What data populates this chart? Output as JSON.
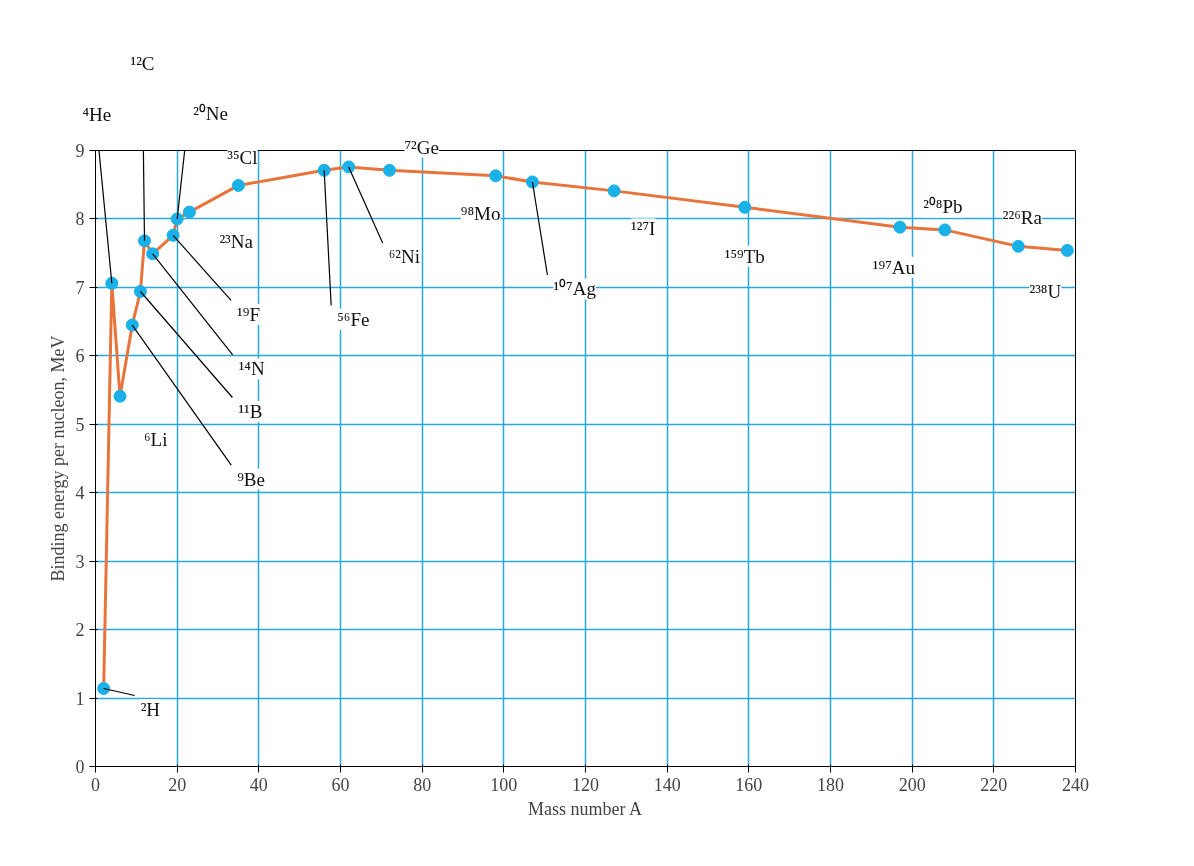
{
  "chart_data": {
    "type": "line",
    "xlabel": "Mass number A",
    "ylabel": "Binding energy per nucleon, MeV",
    "x": [
      2,
      4,
      6,
      9,
      11,
      12,
      14,
      19,
      20,
      23,
      35,
      56,
      62,
      72,
      98,
      107,
      127,
      159,
      197,
      208,
      226,
      238
    ],
    "series": [
      {
        "color": "#e8743b",
        "values": [
          1.14,
          7.06,
          5.41,
          6.45,
          6.94,
          7.68,
          7.49,
          7.76,
          8.0,
          8.1,
          8.49,
          8.71,
          8.76,
          8.71,
          8.63,
          8.54,
          8.41,
          8.17,
          7.88,
          7.84,
          7.6,
          7.54
        ]
      }
    ],
    "marker": "circle",
    "grid": true,
    "xlim": [
      0,
      240
    ],
    "ylim": [
      0,
      9
    ],
    "xticks": [
      0,
      20,
      40,
      60,
      80,
      100,
      120,
      140,
      160,
      180,
      200,
      220,
      240
    ],
    "yticks": [
      0,
      1,
      2,
      3,
      4,
      5,
      6,
      7,
      8,
      9
    ],
    "annotations": [
      {
        "text": "²H",
        "x": 2,
        "y": 1.14
      },
      {
        "text": "⁴He",
        "x": 4,
        "y": 7.06
      },
      {
        "text": "⁶Li",
        "x": 6,
        "y": 5.41
      },
      {
        "text": "⁹Be",
        "x": 9,
        "y": 6.45
      },
      {
        "text": "¹¹B",
        "x": 11,
        "y": 6.94
      },
      {
        "text": "¹²C",
        "x": 12,
        "y": 7.68
      },
      {
        "text": "¹⁴N",
        "x": 14,
        "y": 7.49
      },
      {
        "text": "¹⁹F",
        "x": 19,
        "y": 7.76
      },
      {
        "text": "²⁰Ne",
        "x": 20,
        "y": 8.0
      },
      {
        "text": "²³Na",
        "x": 23,
        "y": 8.1
      },
      {
        "text": "³⁵Cl",
        "x": 35,
        "y": 8.49
      },
      {
        "text": "⁵⁶Fe",
        "x": 56,
        "y": 8.71
      },
      {
        "text": "⁶²Ni",
        "x": 62,
        "y": 8.76
      },
      {
        "text": "⁷²Ge",
        "x": 72,
        "y": 8.71
      },
      {
        "text": "⁹⁸Mo",
        "x": 98,
        "y": 8.63
      },
      {
        "text": "¹⁰⁷Ag",
        "x": 107,
        "y": 8.54
      },
      {
        "text": "¹²⁷I",
        "x": 127,
        "y": 8.41
      },
      {
        "text": "¹⁵⁹Tb",
        "x": 159,
        "y": 8.17
      },
      {
        "text": "¹⁹⁷Au",
        "x": 197,
        "y": 7.88
      },
      {
        "text": "²⁰⁸Pb",
        "x": 208,
        "y": 7.84
      },
      {
        "text": "²²⁶Ra",
        "x": 226,
        "y": 7.6
      },
      {
        "text": "²³⁸U",
        "x": 238,
        "y": 7.54
      }
    ]
  }
}
